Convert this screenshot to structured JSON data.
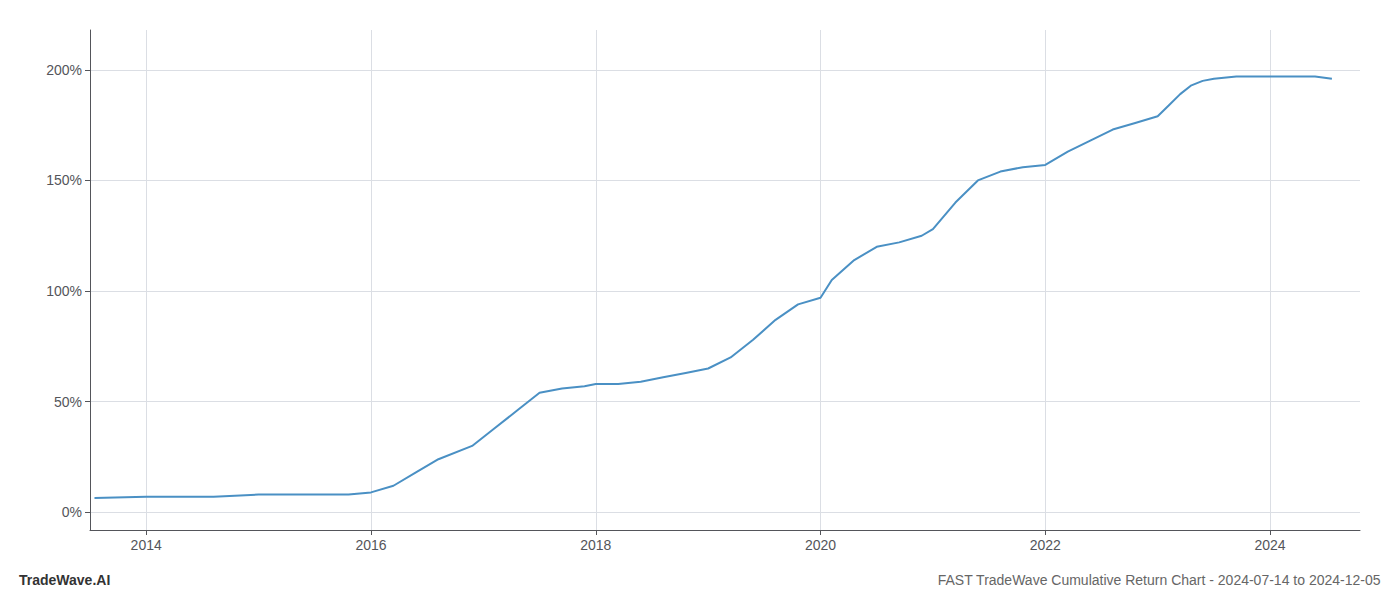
{
  "chart_data": {
    "type": "line",
    "title": "FAST TradeWave Cumulative Return Chart - 2024-07-14 to 2024-12-05",
    "annotations": [
      "TradeWave.AI"
    ],
    "x": [
      2013.54,
      2014.0,
      2014.1,
      2014.3,
      2014.6,
      2015.0,
      2015.2,
      2015.5,
      2015.8,
      2016.0,
      2016.2,
      2016.4,
      2016.6,
      2016.9,
      2017.1,
      2017.3,
      2017.5,
      2017.7,
      2017.9,
      2018.0,
      2018.2,
      2018.4,
      2018.6,
      2018.8,
      2019.0,
      2019.2,
      2019.4,
      2019.6,
      2019.8,
      2020.0,
      2020.1,
      2020.3,
      2020.5,
      2020.7,
      2020.9,
      2021.0,
      2021.2,
      2021.4,
      2021.6,
      2021.8,
      2022.0,
      2022.2,
      2022.4,
      2022.6,
      2022.8,
      2023.0,
      2023.1,
      2023.2,
      2023.3,
      2023.4,
      2023.5,
      2023.7,
      2024.0,
      2024.2,
      2024.4,
      2024.55
    ],
    "values": [
      0.065,
      0.07,
      0.07,
      0.07,
      0.07,
      0.08,
      0.08,
      0.08,
      0.08,
      0.09,
      0.12,
      0.18,
      0.24,
      0.3,
      0.38,
      0.46,
      0.54,
      0.56,
      0.57,
      0.58,
      0.58,
      0.59,
      0.61,
      0.63,
      0.65,
      0.7,
      0.78,
      0.87,
      0.94,
      0.97,
      1.05,
      1.14,
      1.2,
      1.22,
      1.25,
      1.28,
      1.4,
      1.5,
      1.54,
      1.56,
      1.57,
      1.63,
      1.68,
      1.73,
      1.76,
      1.79,
      1.84,
      1.89,
      1.93,
      1.95,
      1.96,
      1.97,
      1.97,
      1.97,
      1.97,
      1.96
    ],
    "color": "#4a90c4",
    "xlim": [
      2013.5,
      2024.8
    ],
    "ylim": [
      -0.08,
      2.18
    ],
    "xticks": [
      2014,
      2016,
      2018,
      2020,
      2022,
      2024
    ],
    "yticks": [
      {
        "value": 0.0,
        "label": "0%"
      },
      {
        "value": 0.5,
        "label": "50%"
      },
      {
        "value": 1.0,
        "label": "100%"
      },
      {
        "value": 1.5,
        "label": "150%"
      },
      {
        "value": 2.0,
        "label": "200%"
      }
    ],
    "grid": true
  }
}
